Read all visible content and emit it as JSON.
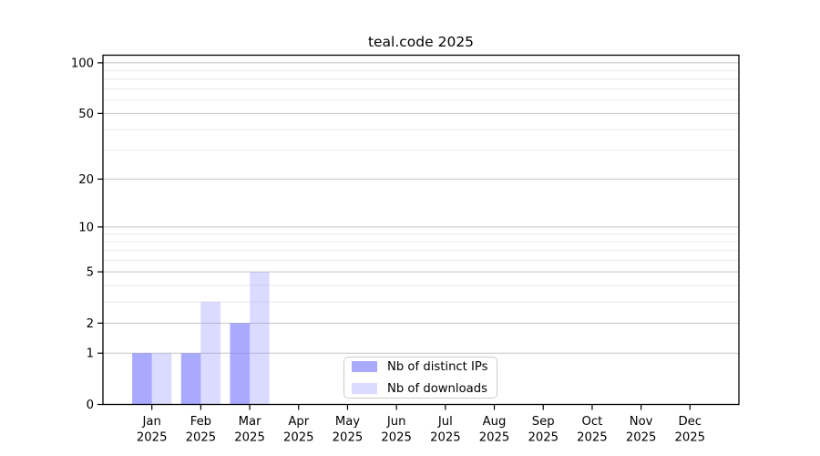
{
  "chart_data": {
    "type": "bar",
    "title": "teal.code 2025",
    "categories": [
      "Jan 2025",
      "Feb 2025",
      "Mar 2025",
      "Apr 2025",
      "May 2025",
      "Jun 2025",
      "Jul 2025",
      "Aug 2025",
      "Sep 2025",
      "Oct 2025",
      "Nov 2025",
      "Dec 2025"
    ],
    "series": [
      {
        "name": "Nb of distinct IPs",
        "key": "distinct-ips",
        "color": "#8888ff",
        "opacity": 0.72,
        "values": [
          1,
          1,
          2,
          0,
          0,
          0,
          0,
          0,
          0,
          0,
          0,
          0
        ]
      },
      {
        "name": "Nb of downloads",
        "key": "downloads",
        "color": "#8888ff",
        "opacity": 0.3,
        "values": [
          1,
          3,
          5,
          0,
          0,
          0,
          0,
          0,
          0,
          0,
          0,
          0
        ]
      }
    ],
    "yscale": "log1p",
    "ylim": [
      0,
      111
    ],
    "y_major_ticks": [
      0,
      1,
      2,
      5,
      10,
      20,
      50,
      100
    ],
    "y_minor_gridlines": [
      3,
      4,
      6,
      7,
      8,
      9,
      30,
      40,
      60,
      70,
      80,
      90
    ],
    "xlabel": "",
    "ylabel": "",
    "grid": "both",
    "legend_position": "lower center"
  },
  "style": {
    "background": "#ffffff",
    "axis_color": "#000000",
    "text_color": "#000000",
    "major_grid_color": "#c6c6c6",
    "minor_grid_color": "#e9e9e9",
    "legend_border_color": "#cccccc"
  }
}
